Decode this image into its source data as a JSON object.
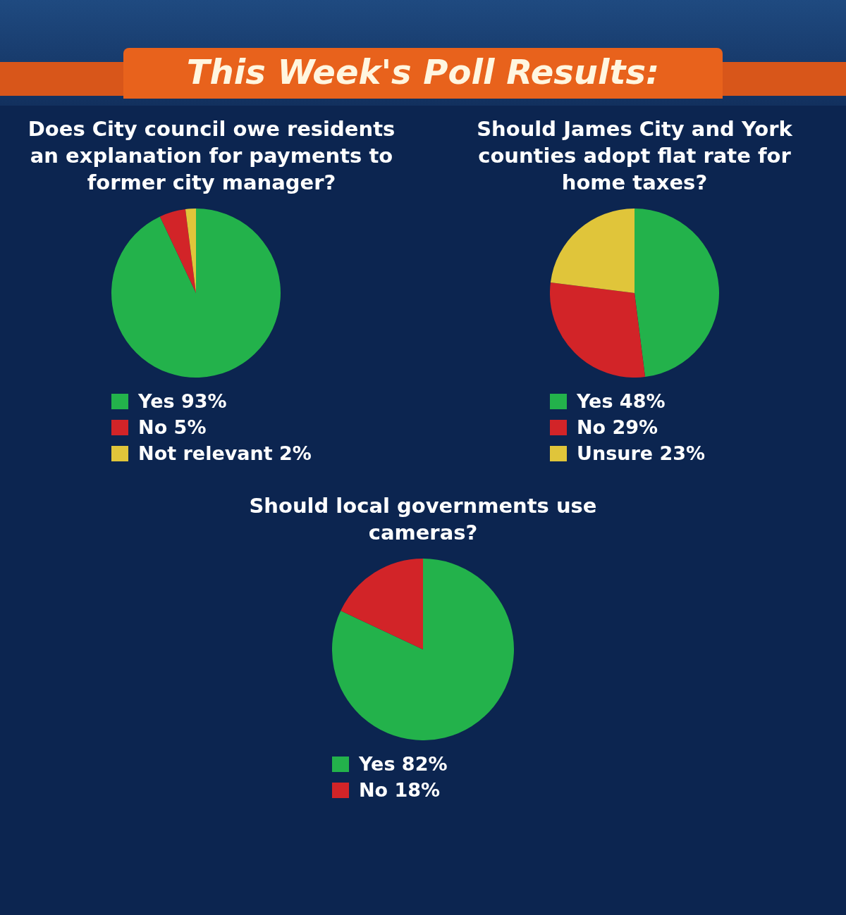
{
  "chart_data": [
    {
      "type": "pie",
      "annotations": [
        "This Week's Poll Results:"
      ],
      "title": "Does City council owe residents an explanation for payments to former city manager?",
      "categories": [
        "Yes",
        "No",
        "Not relevant"
      ],
      "values": [
        93,
        5,
        2
      ],
      "value_labels": [
        "93%",
        "5%",
        "2%"
      ],
      "colors": [
        "#23b24b",
        "#d22428",
        "#e0c53a"
      ],
      "legend": "bottom"
    },
    {
      "type": "pie",
      "title": "Should James City and York counties adopt flat rate for home taxes?",
      "categories": [
        "Yes",
        "No",
        "Unsure"
      ],
      "values": [
        48,
        29,
        23
      ],
      "value_labels": [
        "48%",
        "29%",
        "23%"
      ],
      "colors": [
        "#23b24b",
        "#d22428",
        "#e0c53a"
      ],
      "legend": "bottom"
    },
    {
      "type": "pie",
      "title": "Should local governments use cameras?",
      "categories": [
        "Yes",
        "No"
      ],
      "values": [
        82,
        18
      ],
      "value_labels": [
        "82%",
        "18%"
      ],
      "colors": [
        "#23b24b",
        "#d22428"
      ],
      "legend": "bottom"
    }
  ]
}
